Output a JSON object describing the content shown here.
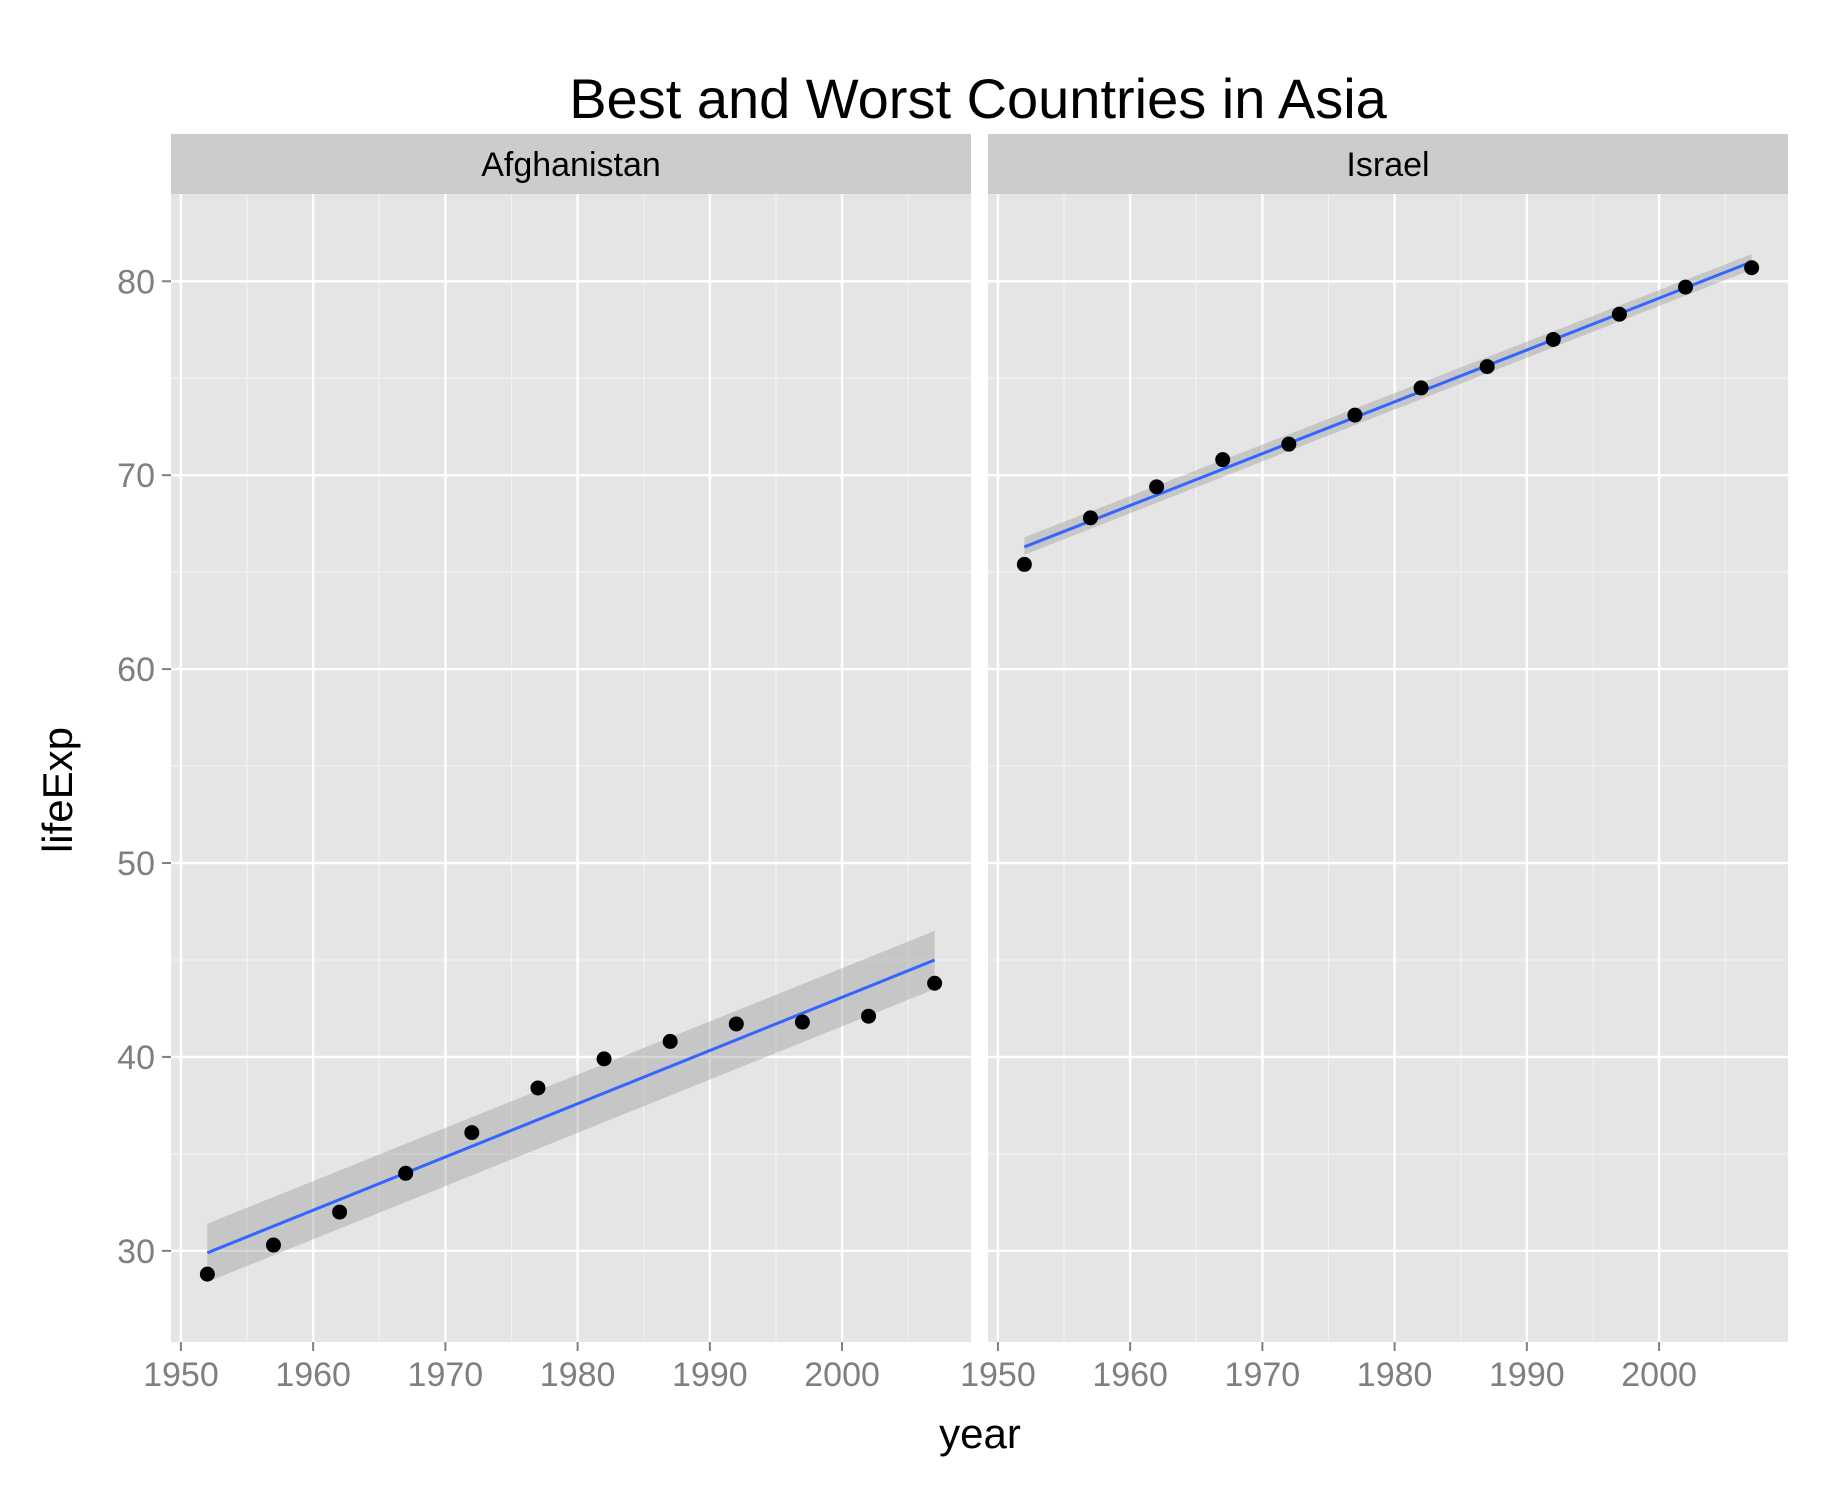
{
  "chart_data": {
    "type": "scatter",
    "title": "Best and Worst Countries in Asia",
    "xlabel": "year",
    "ylabel": "lifeExp",
    "xlim": [
      1949.25,
      2009.75
    ],
    "ylim": [
      25.3,
      84.5
    ],
    "x_ticks": [
      1950,
      1960,
      1970,
      1980,
      1990,
      2000
    ],
    "y_ticks": [
      30,
      40,
      50,
      60,
      70,
      80
    ],
    "grid": true,
    "colors": {
      "panel_background": "#e5e5e5",
      "strip_background": "#cccccc",
      "point": "#000000",
      "smooth_line": "#3366ff",
      "confidence_band": "#999999"
    },
    "panels": [
      {
        "name": "Afghanistan",
        "x": [
          1952,
          1957,
          1962,
          1967,
          1972,
          1977,
          1982,
          1987,
          1992,
          1997,
          2002,
          2007
        ],
        "y": [
          28.8,
          30.3,
          32.0,
          34.0,
          36.1,
          38.4,
          39.9,
          40.8,
          41.7,
          41.8,
          42.1,
          43.8
        ],
        "smooth": {
          "x": [
            1952,
            2007
          ],
          "y": [
            29.9,
            45.0
          ],
          "band_lower": [
            28.4,
            43.5
          ],
          "band_upper": [
            31.4,
            46.5
          ]
        }
      },
      {
        "name": "Israel",
        "x": [
          1952,
          1957,
          1962,
          1967,
          1972,
          1977,
          1982,
          1987,
          1992,
          1997,
          2002,
          2007
        ],
        "y": [
          65.4,
          67.8,
          69.4,
          70.8,
          71.6,
          73.1,
          74.5,
          75.6,
          77.0,
          78.3,
          79.7,
          80.7
        ],
        "smooth": {
          "x": [
            1952,
            2007
          ],
          "y": [
            66.3,
            81.0
          ],
          "band_lower": [
            65.9,
            80.6
          ],
          "band_upper": [
            66.8,
            81.4
          ]
        }
      }
    ]
  }
}
